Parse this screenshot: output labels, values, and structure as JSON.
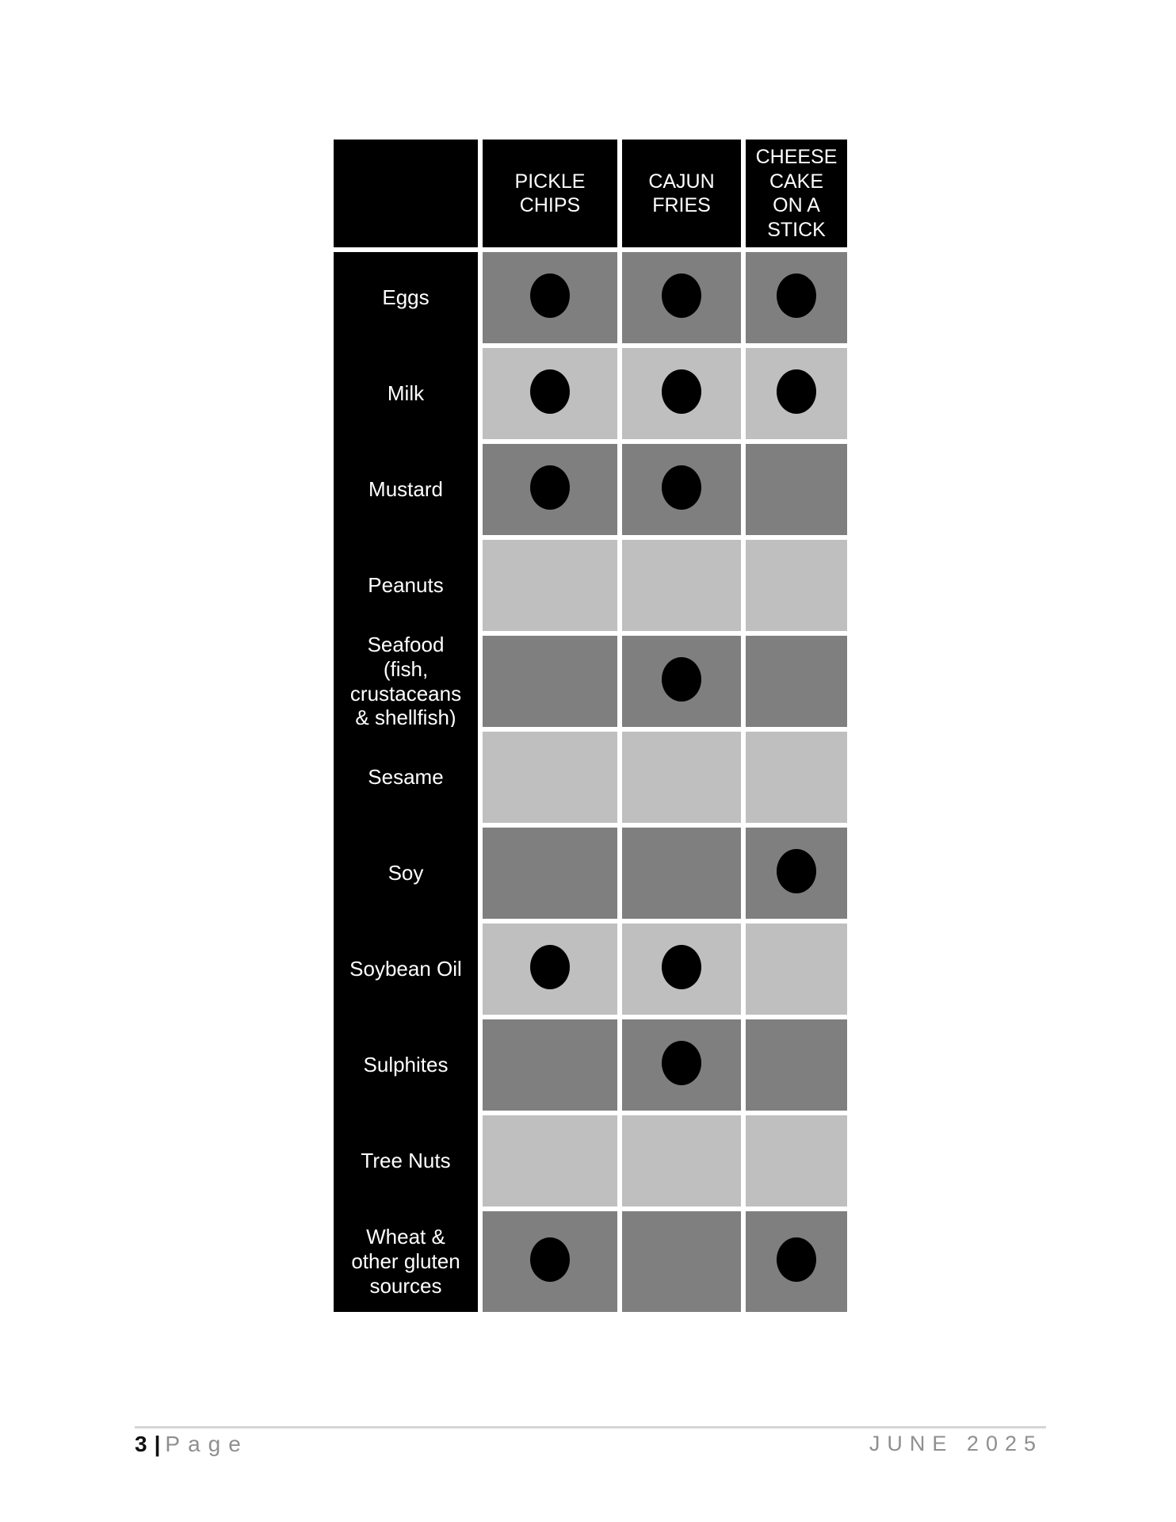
{
  "table": {
    "columns": [
      "PICKLE CHIPS",
      "CAJUN FRIES",
      "CHEESE CAKE ON A STICK"
    ],
    "rows": [
      {
        "label": "Eggs",
        "cells": [
          true,
          true,
          true
        ]
      },
      {
        "label": "Milk",
        "cells": [
          true,
          true,
          true
        ]
      },
      {
        "label": "Mustard",
        "cells": [
          true,
          true,
          false
        ]
      },
      {
        "label": "Peanuts",
        "cells": [
          false,
          false,
          false
        ]
      },
      {
        "label": "Seafood (fish, crustaceans & shellfish)",
        "cells": [
          false,
          true,
          false
        ]
      },
      {
        "label": "Sesame",
        "cells": [
          false,
          false,
          false
        ]
      },
      {
        "label": "Soy",
        "cells": [
          false,
          false,
          true
        ]
      },
      {
        "label": "Soybean Oil",
        "cells": [
          true,
          true,
          false
        ]
      },
      {
        "label": "Sulphites",
        "cells": [
          false,
          true,
          false
        ]
      },
      {
        "label": "Tree Nuts",
        "cells": [
          false,
          false,
          false
        ]
      },
      {
        "label": "Wheat & other gluten sources",
        "cells": [
          true,
          false,
          true
        ]
      }
    ],
    "colors": {
      "header_bg": "#000000",
      "header_text": "#ffffff",
      "row_dark": "#7f7f7f",
      "row_light": "#bfbfbf",
      "dot": "#000000"
    }
  },
  "footer": {
    "page_number": "3",
    "separator": "|",
    "page_word": "Page",
    "date": "JUNE 2025"
  }
}
